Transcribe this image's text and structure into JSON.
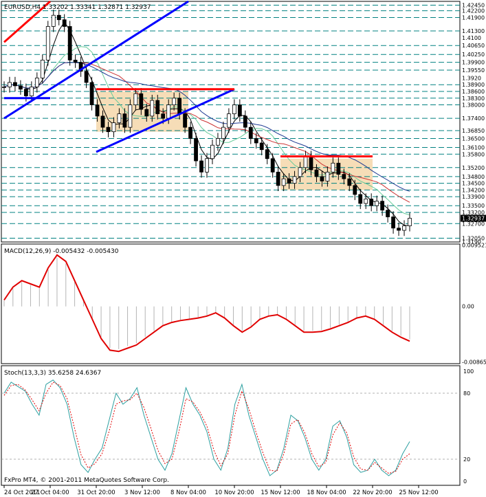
{
  "window": {
    "symbol_header": "EURUSD,H4  1.33202 1.33341 1.32871 1.32937",
    "footer_credit": "FxPro MT4, © 2001-2011 MetaQuotes Software Corp."
  },
  "colors": {
    "border": "#000000",
    "level_line": "#008080",
    "candle_up": "#000000",
    "candle_down": "#000000",
    "trend_blue": "#0000ff",
    "trend_red": "#ff0000",
    "zone_fill": "#f5d7aa",
    "ma_black": "#000000",
    "ma_green": "#66cc99",
    "ma_red": "#cc3333",
    "ma_navy": "#1f3a93",
    "macd_hist": "#b4b4b4",
    "macd_signal": "#e00000",
    "stoch_main": "#2b9fa0",
    "stoch_signal": "#e00000"
  },
  "chart_data": [
    {
      "type": "candlestick",
      "title": "EURUSD,H4  1.33202 1.33341 1.32871 1.32937",
      "timeframe": "H4",
      "ylim": [
        1.3188,
        1.4262
      ],
      "x_ticks": [
        "24 Oct 2011",
        "27 Oct 04:00",
        "31 Oct 20:00",
        "3 Nov 12:00",
        "8 Nov 04:00",
        "10 Nov 20:00",
        "15 Nov 12:00",
        "18 Nov 04:00",
        "22 Nov 20:00",
        "25 Nov 12:00"
      ],
      "price_levels": [
        "1.42450",
        "1.42200",
        "1.41900",
        "1.41300",
        "1.40650",
        "1.40250",
        "1.39900",
        "1.39550",
        "1.38900",
        "1.38600",
        "1.38300",
        "1.38000",
        "1.37400",
        "1.36850",
        "1.36500",
        "1.36100",
        "1.35800",
        "1.35200",
        "1.34800",
        "1.34500",
        "1.34200",
        "1.33900",
        "1.33500",
        "1.33200",
        "1.32700",
        "1.32050"
      ],
      "price_axis_extra_labels": [
        "1.4100",
        "1.3920",
        "1.3190"
      ],
      "current_price": "1.32937",
      "close_path": [
        1.388,
        1.39,
        1.3885,
        1.387,
        1.384,
        1.388,
        1.392,
        1.4,
        1.415,
        1.42,
        1.418,
        1.415,
        1.4,
        1.399,
        1.395,
        1.39,
        1.38,
        1.375,
        1.37,
        1.368,
        1.372,
        1.376,
        1.37,
        1.38,
        1.385,
        1.378,
        1.375,
        1.382,
        1.376,
        1.374,
        1.38,
        1.383,
        1.376,
        1.37,
        1.365,
        1.355,
        1.35,
        1.356,
        1.362,
        1.365,
        1.37,
        1.376,
        1.38,
        1.375,
        1.37,
        1.365,
        1.363,
        1.36,
        1.356,
        1.35,
        1.344,
        1.347,
        1.345,
        1.348,
        1.352,
        1.357,
        1.351,
        1.348,
        1.346,
        1.35,
        1.354,
        1.349,
        1.347,
        1.344,
        1.34,
        1.336,
        1.338,
        1.335,
        1.337,
        1.333,
        1.33,
        1.325,
        1.324,
        1.326,
        1.3294
      ],
      "trendlines": [
        {
          "color": "red",
          "from": [
            "24 Oct 2011",
            1.408
          ],
          "to": [
            "27 Oct 04:00",
            1.4262
          ]
        },
        {
          "color": "blue",
          "from": [
            "24 Oct 2011",
            1.374
          ],
          "to": [
            "8 Nov 04:00",
            1.4262
          ]
        },
        {
          "color": "blue",
          "from": [
            "31 Oct 20:00",
            1.359
          ],
          "to": [
            "10 Nov 20:00",
            1.387
          ]
        },
        {
          "color": "blue",
          "from": [
            "24 Oct 2011",
            1.383
          ],
          "to": [
            "27 Oct 04:00",
            1.383
          ]
        },
        {
          "color": "red",
          "from": [
            "31 Oct 20:00",
            1.387
          ],
          "to": [
            "10 Nov 20:00",
            1.387
          ]
        },
        {
          "color": "red",
          "from": [
            "15 Nov 12:00",
            1.357
          ],
          "to": [
            "22 Nov 20:00",
            1.357
          ]
        }
      ],
      "zones": [
        {
          "from": "31 Oct 20:00",
          "to": "8 Nov 04:00",
          "price_top": 1.386,
          "price_bottom": 1.368
        },
        {
          "from": "15 Nov 12:00",
          "to": "22 Nov 20:00",
          "price_top": 1.356,
          "price_bottom": 1.342
        }
      ]
    },
    {
      "type": "line",
      "title": "MACD(12,26,9) -0.005432 -0.005430",
      "ylim": [
        -0.0089,
        0.0097
      ],
      "y_ticks": [
        "0.009521",
        "0.00",
        "-0.008657"
      ],
      "series": [
        {
          "values": [
            0.001,
            0.003,
            0.004,
            0.0035,
            0.003,
            0.006,
            0.008,
            0.007,
            0.004,
            0.001,
            -0.002,
            -0.005,
            -0.0068,
            -0.007,
            -0.0065,
            -0.006,
            -0.005,
            -0.004,
            -0.003,
            -0.0025,
            -0.0022,
            -0.002,
            -0.0018,
            -0.0015,
            -0.001,
            -0.0018,
            -0.003,
            -0.004,
            -0.0032,
            -0.002,
            -0.0015,
            -0.0013,
            -0.002,
            -0.003,
            -0.004,
            -0.004,
            -0.0039,
            -0.0035,
            -0.003,
            -0.0025,
            -0.0018,
            -0.0015,
            -0.002,
            -0.003,
            -0.004,
            -0.0048,
            -0.0054
          ]
        }
      ]
    },
    {
      "type": "line",
      "title": "Stoch(13,3,3) 35.6258 24.6367",
      "ylim": [
        0,
        100
      ],
      "y_ticks": [
        "100",
        "80",
        "20",
        "0"
      ],
      "series": [
        {
          "values": [
            80,
            90,
            86,
            82,
            70,
            60,
            88,
            92,
            85,
            70,
            40,
            15,
            8,
            20,
            30,
            55,
            80,
            70,
            75,
            85,
            60,
            40,
            20,
            10,
            25,
            55,
            85,
            70,
            60,
            45,
            20,
            10,
            30,
            70,
            88,
            60,
            40,
            20,
            5,
            10,
            30,
            60,
            55,
            40,
            20,
            10,
            20,
            50,
            55,
            40,
            15,
            8,
            10,
            20,
            10,
            5,
            10,
            25,
            36
          ]
        },
        {
          "values": [
            78,
            87,
            88,
            83,
            74,
            64,
            80,
            90,
            87,
            75,
            50,
            24,
            12,
            16,
            25,
            45,
            70,
            73,
            74,
            80,
            67,
            48,
            28,
            16,
            20,
            45,
            75,
            72,
            63,
            50,
            28,
            14,
            25,
            60,
            82,
            66,
            45,
            26,
            10,
            9,
            25,
            52,
            56,
            44,
            25,
            13,
            17,
            42,
            53,
            44,
            22,
            11,
            10,
            17,
            12,
            7,
            9,
            20,
            25
          ]
        }
      ]
    }
  ]
}
